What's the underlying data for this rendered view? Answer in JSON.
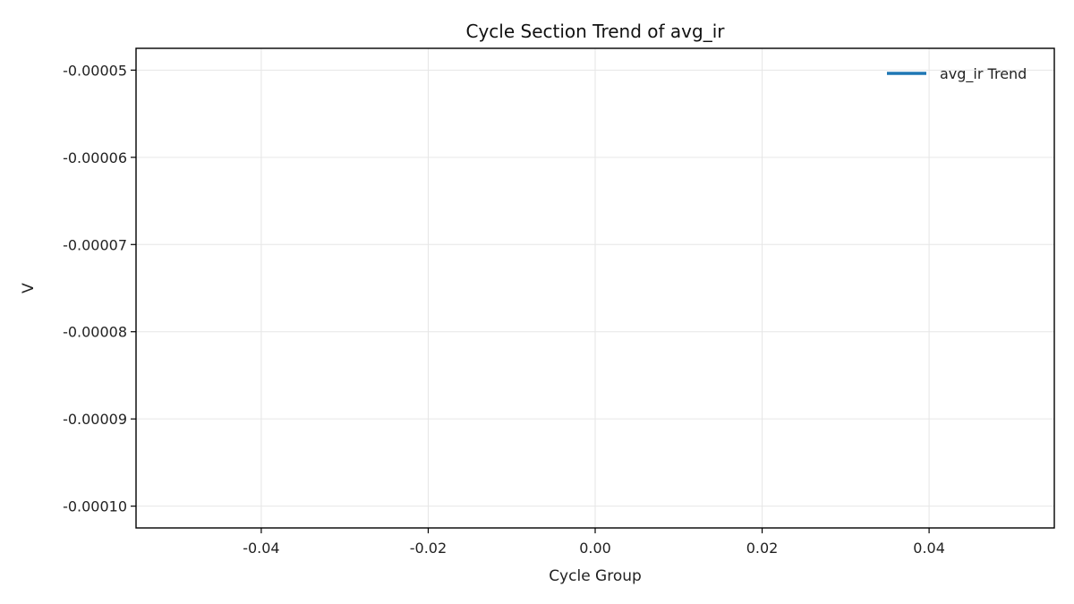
{
  "chart_data": {
    "type": "line",
    "title": "Cycle Section Trend of avg_ir",
    "xlabel": "Cycle Group",
    "ylabel": "V",
    "xlim": [
      -0.055,
      0.055
    ],
    "ylim": [
      -0.0001025,
      -4.75e-05
    ],
    "xticks": [
      -0.04,
      -0.02,
      0.0,
      0.02,
      0.04
    ],
    "xtick_labels": [
      "-0.04",
      "-0.02",
      "0.00",
      "0.02",
      "0.04"
    ],
    "yticks": [
      -5e-05,
      -6e-05,
      -7e-05,
      -8e-05,
      -9e-05,
      -0.0001
    ],
    "ytick_labels": [
      "-0.00005",
      "-0.00006",
      "-0.00007",
      "-0.00008",
      "-0.00009",
      "-0.00010"
    ],
    "grid": true,
    "legend_position": "top-right",
    "series": [
      {
        "name": "avg_ir Trend",
        "color": "#1f77b4",
        "x": [],
        "y": []
      }
    ]
  }
}
